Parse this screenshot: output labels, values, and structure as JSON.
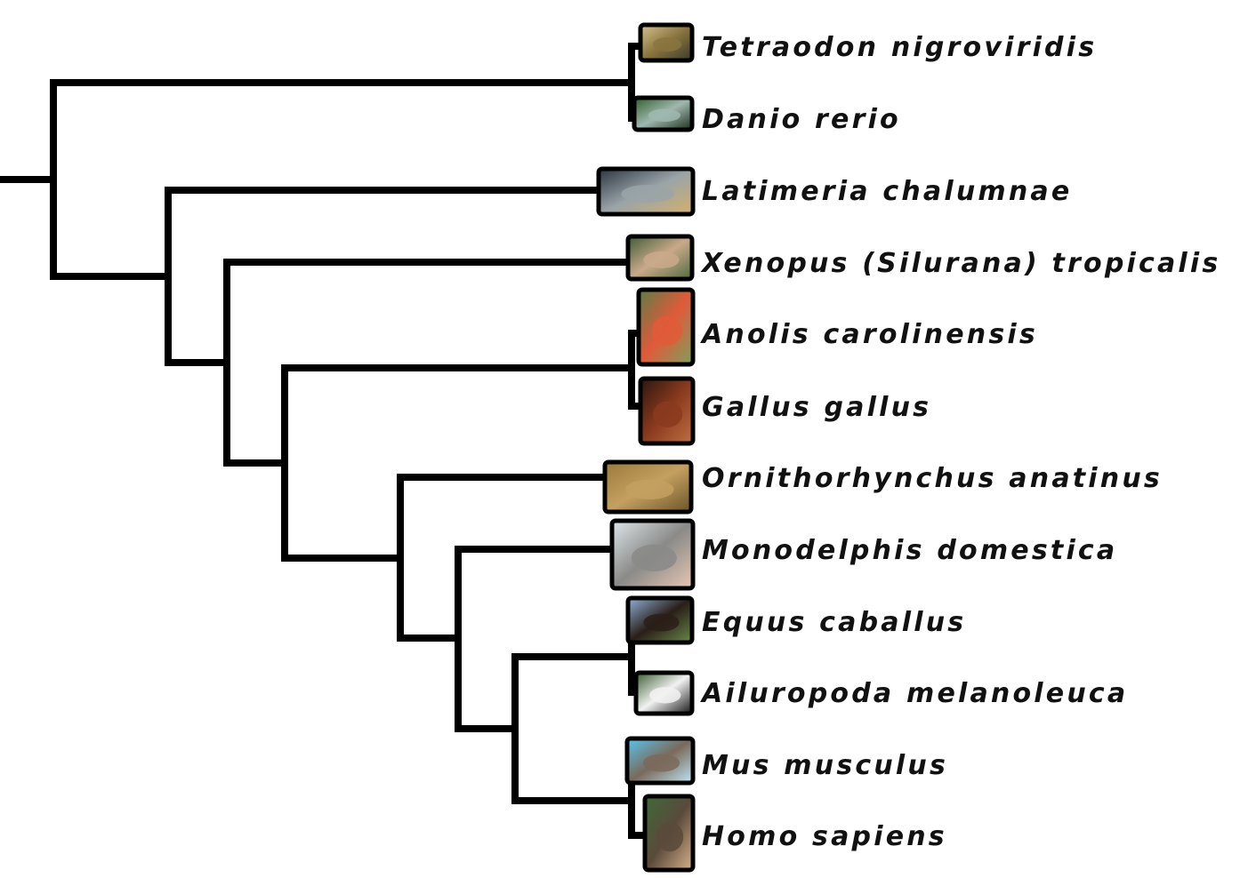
{
  "tree": {
    "taxa": [
      {
        "name": "Tetraodon nigroviridis",
        "photo": "pufferfish-photo",
        "colors": [
          "#d8c48f",
          "#8a7440",
          "#3a3a2a"
        ]
      },
      {
        "name": "Danio rerio",
        "photo": "zebrafish-photo",
        "colors": [
          "#2f5d2a",
          "#9fb8b0",
          "#1a2e18"
        ]
      },
      {
        "name": "Latimeria chalumnae",
        "photo": "coelacanth-photo",
        "colors": [
          "#2b3440",
          "#9aa4a8",
          "#d6b06a"
        ]
      },
      {
        "name": "Xenopus (Silurana) tropicalis",
        "photo": "frog-photo",
        "colors": [
          "#3d5a35",
          "#c9a98a",
          "#4f6b3f"
        ]
      },
      {
        "name": "Anolis carolinensis",
        "photo": "anole-photo",
        "colors": [
          "#5a7d45",
          "#e05a3a",
          "#7ea05a"
        ]
      },
      {
        "name": "Gallus gallus",
        "photo": "chicken-photo",
        "colors": [
          "#2a1610",
          "#8a3a1e",
          "#c07040"
        ]
      },
      {
        "name": "Ornithorhynchus anatinus",
        "photo": "platypus-photo",
        "colors": [
          "#9a7a3a",
          "#c4a060",
          "#6a5428"
        ]
      },
      {
        "name": "Monodelphis domestica",
        "photo": "opossum-photo",
        "colors": [
          "#dfe6ea",
          "#8a8a88",
          "#e8c8b4"
        ]
      },
      {
        "name": "Equus caballus",
        "photo": "horses-photo",
        "colors": [
          "#8fb4d8",
          "#2a1e18",
          "#6a8a4a"
        ]
      },
      {
        "name": "Ailuropoda melanoleuca",
        "photo": "panda-photo",
        "colors": [
          "#3a5a30",
          "#f2f2f2",
          "#141414"
        ]
      },
      {
        "name": "Mus musculus",
        "photo": "mouse-photo",
        "colors": [
          "#58c6f0",
          "#7a6a5a",
          "#bfe8f8"
        ]
      },
      {
        "name": "Homo sapiens",
        "photo": "humans-photo",
        "colors": [
          "#3e6a38",
          "#5a4a3a",
          "#d8b48a"
        ]
      }
    ]
  }
}
